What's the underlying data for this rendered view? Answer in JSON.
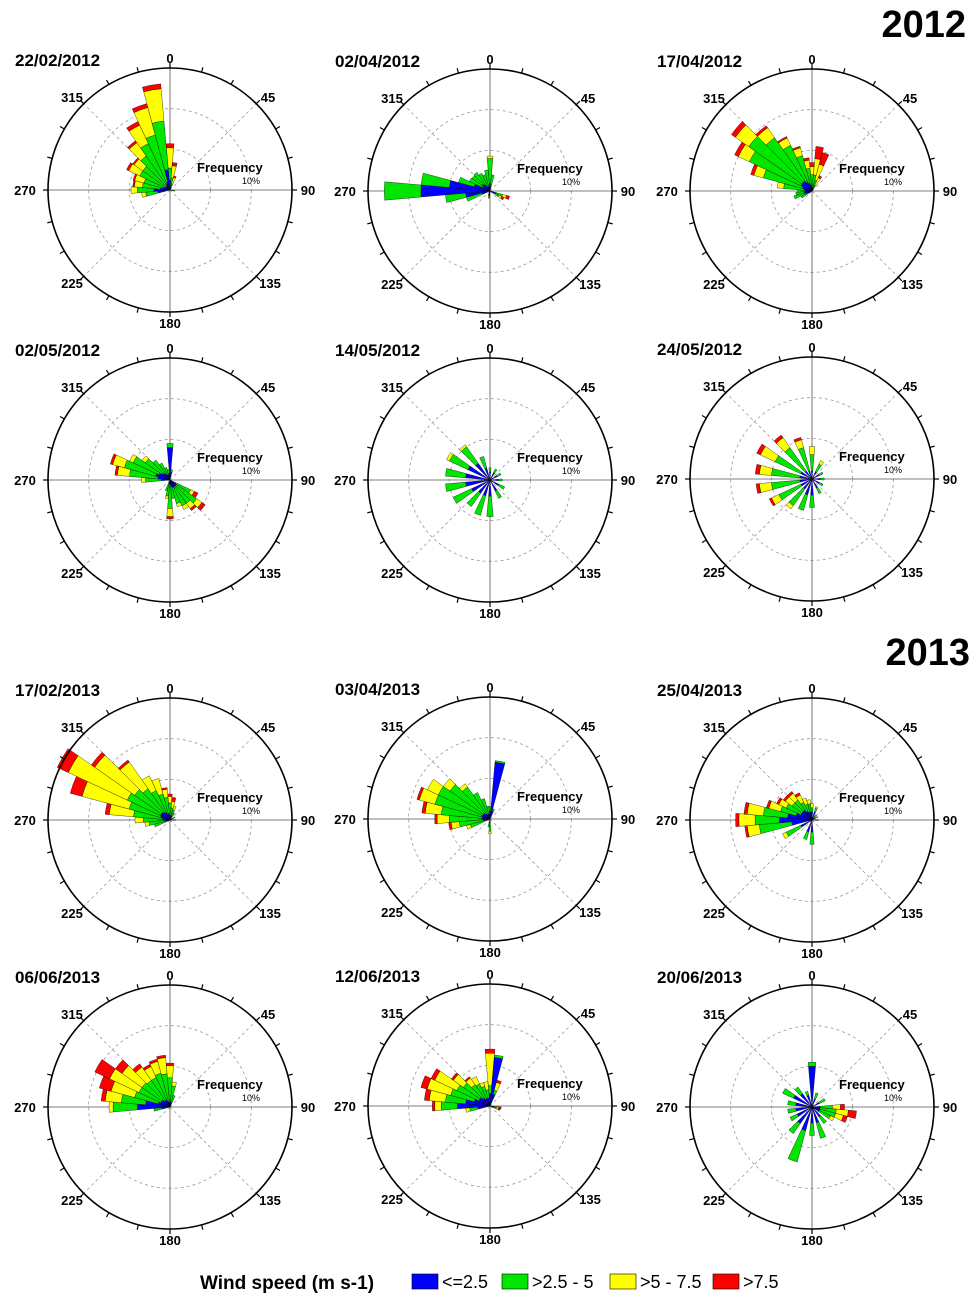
{
  "years": [
    "2012",
    "2013"
  ],
  "frequency_label": "Frequency",
  "ring_label": "10%",
  "direction_labels": [
    "0",
    "45",
    "90",
    "135",
    "180",
    "225",
    "270",
    "315"
  ],
  "legend": {
    "title": "Wind speed (m s-1)",
    "items": [
      {
        "label": "<=2.5",
        "color": "#0000ff"
      },
      {
        "label": ">2.5 - 5",
        "color": "#00e600"
      },
      {
        "label": ">5 - 7.5",
        "color": "#ffff00"
      },
      {
        "label": ">7.5",
        "color": "#ff0000"
      }
    ]
  },
  "chart_data": [
    {
      "type": "windrose",
      "date": "22/02/2012",
      "max_frequency_pct": 15,
      "ring_step_pct": 5,
      "directions_deg": [
        0,
        10,
        20,
        260,
        270,
        280,
        290,
        300,
        310,
        320,
        330,
        340,
        350,
        100
      ],
      "bins": {
        "le_2_5": [
          1.2,
          0.5,
          0.3,
          1.5,
          2.0,
          1.2,
          0.8,
          0.6,
          0.6,
          0.6,
          0.8,
          1.0,
          2.5,
          0.3
        ],
        "gt_2_5_5": [
          1.5,
          1.0,
          0.5,
          1.5,
          2.0,
          2.2,
          2.5,
          3.5,
          3.5,
          4.5,
          5.5,
          6.0,
          6.0,
          0.3
        ],
        "gt_5_7_5": [
          2.5,
          1.5,
          0.8,
          0.5,
          0.8,
          1.0,
          1.2,
          1.5,
          1.3,
          2.0,
          2.5,
          3.5,
          4.0,
          0
        ],
        "gt_7_5": [
          0.5,
          0.4,
          0.2,
          0,
          0,
          0.2,
          0.2,
          0.3,
          0.2,
          0.3,
          0.5,
          0.5,
          0.6,
          0
        ]
      }
    },
    {
      "type": "windrose",
      "date": "02/04/2012",
      "max_frequency_pct": 15,
      "ring_step_pct": 5,
      "directions_deg": [
        270,
        280,
        260,
        290,
        250,
        300,
        310,
        320,
        330,
        340,
        350,
        0,
        10,
        110,
        120,
        190,
        200
      ],
      "bins": {
        "le_2_5": [
          8.5,
          5.0,
          3.0,
          2.0,
          1.0,
          1.0,
          1.2,
          1.0,
          0.6,
          0.6,
          0.6,
          1.0,
          0.5,
          0.8,
          0.6,
          0.6,
          0.4
        ],
        "gt_2_5_5": [
          4.5,
          3.5,
          2.5,
          2.0,
          2.0,
          1.8,
          1.5,
          1.8,
          1.8,
          1.5,
          2.0,
          3.0,
          1.5,
          0.8,
          0.6,
          0.3,
          0.2
        ],
        "gt_5_7_5": [
          0,
          0,
          0,
          0,
          0,
          0,
          0,
          0,
          0,
          0,
          0,
          0.3,
          0,
          0.5,
          0.4,
          0,
          0
        ],
        "gt_7_5": [
          0,
          0,
          0,
          0,
          0,
          0,
          0,
          0,
          0,
          0,
          0,
          0,
          0,
          0.4,
          0.3,
          0,
          0
        ]
      }
    },
    {
      "type": "windrose",
      "date": "17/04/2012",
      "max_frequency_pct": 15,
      "ring_step_pct": 5,
      "directions_deg": [
        270,
        280,
        290,
        300,
        310,
        320,
        330,
        340,
        350,
        0,
        10,
        20,
        30,
        240,
        250,
        260
      ],
      "bins": {
        "le_2_5": [
          0.8,
          1.0,
          1.2,
          1.5,
          1.5,
          1.5,
          1.2,
          1.0,
          0.8,
          0.5,
          0.5,
          0.4,
          0.3,
          0.5,
          0.8,
          1.0
        ],
        "gt_2_5_5": [
          1.0,
          2.5,
          5.0,
          7.0,
          8.0,
          6.5,
          5.0,
          3.5,
          2.0,
          1.5,
          1.5,
          1.0,
          0.5,
          1.0,
          1.5,
          1.0
        ],
        "gt_5_7_5": [
          0,
          0.8,
          1.2,
          1.5,
          2.0,
          1.5,
          1.0,
          1.0,
          1.0,
          1.0,
          2.0,
          2.0,
          1.0,
          0,
          0,
          0
        ],
        "gt_7_5": [
          0,
          0,
          0.4,
          0.5,
          0.6,
          0.3,
          0.2,
          0.2,
          0.3,
          0.5,
          1.5,
          1.5,
          0.3,
          0,
          0,
          0
        ]
      }
    },
    {
      "type": "windrose",
      "date": "02/05/2012",
      "max_frequency_pct": 15,
      "ring_step_pct": 5,
      "directions_deg": [
        0,
        10,
        270,
        280,
        290,
        300,
        310,
        320,
        330,
        340,
        350,
        120,
        130,
        140,
        150,
        160,
        170,
        180,
        190,
        200
      ],
      "bins": {
        "le_2_5": [
          4.0,
          1.0,
          1.0,
          1.5,
          1.8,
          1.5,
          1.2,
          1.0,
          0.8,
          0.6,
          0.8,
          0.8,
          1.0,
          1.0,
          1.0,
          1.0,
          0.8,
          0.5,
          0.5,
          0.4
        ],
        "gt_2_5_5": [
          0.5,
          0.3,
          2.0,
          3.5,
          4.0,
          3.5,
          2.5,
          2.0,
          1.5,
          1.0,
          0.5,
          2.0,
          3.0,
          2.5,
          2.5,
          2.0,
          1.5,
          3.0,
          1.5,
          1.0
        ],
        "gt_5_7_5": [
          0,
          0,
          0.5,
          1.5,
          1.5,
          0.5,
          0.5,
          0,
          0,
          0,
          0,
          0.5,
          0.8,
          0.8,
          0.5,
          0.4,
          0,
          1.0,
          0.3,
          0
        ],
        "gt_7_5": [
          0,
          0,
          0,
          0.3,
          0.3,
          0,
          0,
          0,
          0,
          0,
          0,
          0.5,
          0.5,
          0.3,
          0,
          0,
          0,
          0.3,
          0,
          0
        ]
      }
    },
    {
      "type": "windrose",
      "date": "14/05/2012",
      "max_frequency_pct": 15,
      "ring_step_pct": 5,
      "directions_deg": [
        0,
        30,
        60,
        90,
        120,
        150,
        180,
        200,
        220,
        240,
        260,
        280,
        300,
        320,
        340
      ],
      "bins": {
        "le_2_5": [
          1.0,
          1.0,
          1.0,
          1.0,
          1.2,
          1.5,
          2.0,
          2.0,
          2.0,
          2.5,
          3.0,
          3.0,
          3.0,
          2.5,
          1.5
        ],
        "gt_2_5_5": [
          0.5,
          0.5,
          0.5,
          0.5,
          0.8,
          1.0,
          2.5,
          2.5,
          2.0,
          2.5,
          2.5,
          2.5,
          2.5,
          2.5,
          1.5
        ],
        "gt_5_7_5": [
          0,
          0,
          0,
          0,
          0,
          0,
          0,
          0,
          0,
          0,
          0,
          0,
          0.4,
          0.3,
          0
        ],
        "gt_7_5": [
          0,
          0,
          0,
          0,
          0,
          0,
          0,
          0,
          0,
          0,
          0,
          0,
          0,
          0,
          0
        ]
      }
    },
    {
      "type": "windrose",
      "date": "24/05/2012",
      "max_frequency_pct": 15,
      "ring_step_pct": 5,
      "directions_deg": [
        0,
        30,
        60,
        90,
        120,
        150,
        180,
        200,
        220,
        240,
        260,
        280,
        300,
        320,
        340
      ],
      "bins": {
        "le_2_5": [
          1.0,
          1.0,
          1.0,
          1.0,
          1.0,
          1.2,
          2.0,
          2.0,
          1.5,
          1.5,
          1.5,
          1.5,
          1.5,
          1.2,
          1.0
        ],
        "gt_2_5_5": [
          2.0,
          1.0,
          0.5,
          0.5,
          0.5,
          0.8,
          1.5,
          2.0,
          2.5,
          3.0,
          3.5,
          3.5,
          3.5,
          3.5,
          3.0
        ],
        "gt_5_7_5": [
          1.0,
          0.5,
          0,
          0,
          0,
          0,
          0,
          0,
          0.5,
          1.0,
          1.5,
          1.5,
          2.0,
          1.5,
          1.0
        ],
        "gt_7_5": [
          0,
          0,
          0,
          0,
          0,
          0,
          0,
          0,
          0,
          0.3,
          0.4,
          0.5,
          0.5,
          0.4,
          0.3
        ]
      }
    },
    {
      "type": "windrose",
      "date": "17/02/2013",
      "max_frequency_pct": 15,
      "ring_step_pct": 5,
      "directions_deg": [
        270,
        280,
        290,
        300,
        310,
        320,
        330,
        340,
        350,
        0,
        10,
        20,
        30,
        60,
        90,
        250,
        260
      ],
      "bins": {
        "le_2_5": [
          0.8,
          1.0,
          1.2,
          1.3,
          1.3,
          1.2,
          1.0,
          0.8,
          0.8,
          0.6,
          0.5,
          0.5,
          0.5,
          0.4,
          0.4,
          0.5,
          0.6
        ],
        "gt_2_5_5": [
          2.5,
          3.5,
          4.0,
          4.5,
          4.0,
          3.5,
          3.0,
          2.5,
          2.0,
          1.5,
          1.0,
          0.8,
          0.5,
          0.3,
          0.3,
          1.5,
          2.0
        ],
        "gt_5_7_5": [
          1.0,
          3.0,
          6.0,
          8.0,
          6.0,
          4.0,
          2.0,
          2.0,
          1.0,
          0.8,
          0.8,
          0.5,
          0,
          0,
          0,
          0,
          0.5
        ],
        "gt_7_5": [
          0,
          0.5,
          1.5,
          1.5,
          0.5,
          0.3,
          0,
          0,
          0.2,
          0.3,
          0.5,
          0,
          0,
          0,
          0,
          0,
          0
        ]
      }
    },
    {
      "type": "windrose",
      "date": "03/04/2013",
      "max_frequency_pct": 15,
      "ring_step_pct": 5,
      "directions_deg": [
        0,
        10,
        20,
        250,
        260,
        270,
        280,
        290,
        300,
        310,
        320,
        330,
        340,
        350,
        180,
        190
      ],
      "bins": {
        "le_2_5": [
          1.0,
          7.0,
          1.0,
          0.5,
          0.8,
          1.0,
          1.0,
          1.0,
          1.0,
          1.0,
          0.8,
          0.6,
          0.6,
          0.6,
          0.5,
          0.5
        ],
        "gt_2_5_5": [
          0.5,
          0.2,
          0.3,
          2.0,
          3.0,
          4.0,
          5.0,
          6.0,
          6.0,
          5.0,
          4.0,
          3.0,
          2.0,
          1.0,
          1.0,
          0.5
        ],
        "gt_5_7_5": [
          0,
          0,
          0,
          0.5,
          1.0,
          1.5,
          2.0,
          2.0,
          1.5,
          1.0,
          0.5,
          0,
          0,
          0,
          0.3,
          0
        ],
        "gt_7_5": [
          0,
          0,
          0,
          0,
          0.3,
          0.3,
          0.4,
          0.3,
          0,
          0,
          0,
          0,
          0,
          0,
          0,
          0
        ]
      }
    },
    {
      "type": "windrose",
      "date": "25/04/2013",
      "max_frequency_pct": 15,
      "ring_step_pct": 5,
      "directions_deg": [
        260,
        270,
        280,
        290,
        300,
        310,
        320,
        330,
        340,
        350,
        0,
        20,
        40,
        60,
        90,
        180,
        200,
        240
      ],
      "bins": {
        "le_2_5": [
          2.5,
          4.0,
          3.0,
          2.0,
          1.5,
          1.5,
          1.5,
          1.2,
          1.0,
          1.0,
          1.0,
          1.0,
          0.5,
          0.5,
          0.5,
          1.5,
          1.5,
          1.5
        ],
        "gt_2_5_5": [
          4.0,
          3.0,
          3.0,
          2.0,
          2.0,
          1.5,
          1.5,
          1.2,
          1.0,
          1.0,
          0.5,
          0.5,
          0.3,
          0.3,
          0.3,
          1.5,
          1.0,
          2.0
        ],
        "gt_5_7_5": [
          1.5,
          2.0,
          2.0,
          1.5,
          1.0,
          1.0,
          1.0,
          1.0,
          0.8,
          0.5,
          0.5,
          0.2,
          0,
          0,
          0,
          0,
          0,
          0.5
        ],
        "gt_7_5": [
          0.3,
          0.4,
          0.4,
          0.3,
          0.3,
          0.3,
          0.3,
          0.3,
          0,
          0,
          0,
          0,
          0,
          0,
          0,
          0,
          0,
          0
        ]
      }
    },
    {
      "type": "windrose",
      "date": "06/06/2013",
      "max_frequency_pct": 15,
      "ring_step_pct": 5,
      "directions_deg": [
        260,
        270,
        280,
        290,
        300,
        310,
        320,
        330,
        340,
        350,
        0,
        10,
        20
      ],
      "bins": {
        "le_2_5": [
          1.0,
          4.0,
          3.0,
          1.5,
          1.2,
          1.2,
          1.0,
          1.0,
          0.8,
          0.6,
          0.6,
          0.6,
          0.5
        ],
        "gt_2_5_5": [
          1.0,
          3.0,
          3.0,
          3.0,
          3.0,
          3.0,
          3.0,
          3.0,
          3.5,
          3.5,
          3.0,
          2.0,
          1.0
        ],
        "gt_5_7_5": [
          0,
          0.5,
          2.0,
          3.0,
          4.0,
          3.0,
          2.0,
          1.5,
          1.5,
          2.0,
          1.5,
          0.5,
          0
        ],
        "gt_7_5": [
          0,
          0,
          0.5,
          1.5,
          2.0,
          1.0,
          0.5,
          0.3,
          0.3,
          0.3,
          0.3,
          0,
          0
        ]
      }
    },
    {
      "type": "windrose",
      "date": "12/06/2013",
      "max_frequency_pct": 15,
      "ring_step_pct": 5,
      "directions_deg": [
        0,
        10,
        20,
        260,
        270,
        280,
        290,
        300,
        310,
        320,
        330,
        340,
        350,
        100,
        110
      ],
      "bins": {
        "le_2_5": [
          1.5,
          6.0,
          1.5,
          1.5,
          4.0,
          3.0,
          2.0,
          1.5,
          1.5,
          1.2,
          1.0,
          1.0,
          1.0,
          0.5,
          0.5
        ],
        "gt_2_5_5": [
          1.0,
          0.3,
          0.5,
          1.0,
          2.0,
          2.5,
          3.0,
          3.0,
          2.5,
          2.0,
          2.0,
          1.5,
          1.0,
          0.3,
          0.3
        ],
        "gt_5_7_5": [
          4.0,
          0,
          1.0,
          0.5,
          0.8,
          2.0,
          3.0,
          3.0,
          1.5,
          1.0,
          1.0,
          0.5,
          1.0,
          0.3,
          0.3
        ],
        "gt_7_5": [
          0.5,
          0,
          0.3,
          0,
          0.3,
          0.6,
          0.8,
          0.5,
          0.3,
          0.2,
          0,
          0,
          0,
          0.3,
          0.2
        ]
      }
    },
    {
      "type": "windrose",
      "date": "20/06/2013",
      "max_frequency_pct": 15,
      "ring_step_pct": 5,
      "directions_deg": [
        0,
        20,
        60,
        90,
        100,
        110,
        120,
        140,
        160,
        180,
        200,
        220,
        240,
        260,
        280,
        300,
        320,
        340
      ],
      "bins": {
        "le_2_5": [
          5.0,
          1.0,
          1.0,
          1.0,
          1.0,
          1.0,
          1.0,
          1.5,
          2.0,
          2.0,
          3.0,
          2.5,
          2.0,
          2.0,
          2.0,
          2.5,
          2.0,
          1.5
        ],
        "gt_2_5_5": [
          0.5,
          0.8,
          0.8,
          1.5,
          2.0,
          2.0,
          1.5,
          1.0,
          2.0,
          1.5,
          4.0,
          1.5,
          1.0,
          1.0,
          1.0,
          1.5,
          1.0,
          0.5
        ],
        "gt_5_7_5": [
          0,
          0,
          0,
          1.0,
          1.5,
          1.0,
          0.5,
          0,
          0,
          0,
          0,
          0,
          0,
          0,
          0,
          0,
          0,
          0
        ],
        "gt_7_5": [
          0,
          0,
          0,
          0.5,
          1.0,
          0.5,
          0,
          0,
          0,
          0,
          0,
          0,
          0,
          0,
          0,
          0,
          0,
          0
        ]
      }
    }
  ]
}
